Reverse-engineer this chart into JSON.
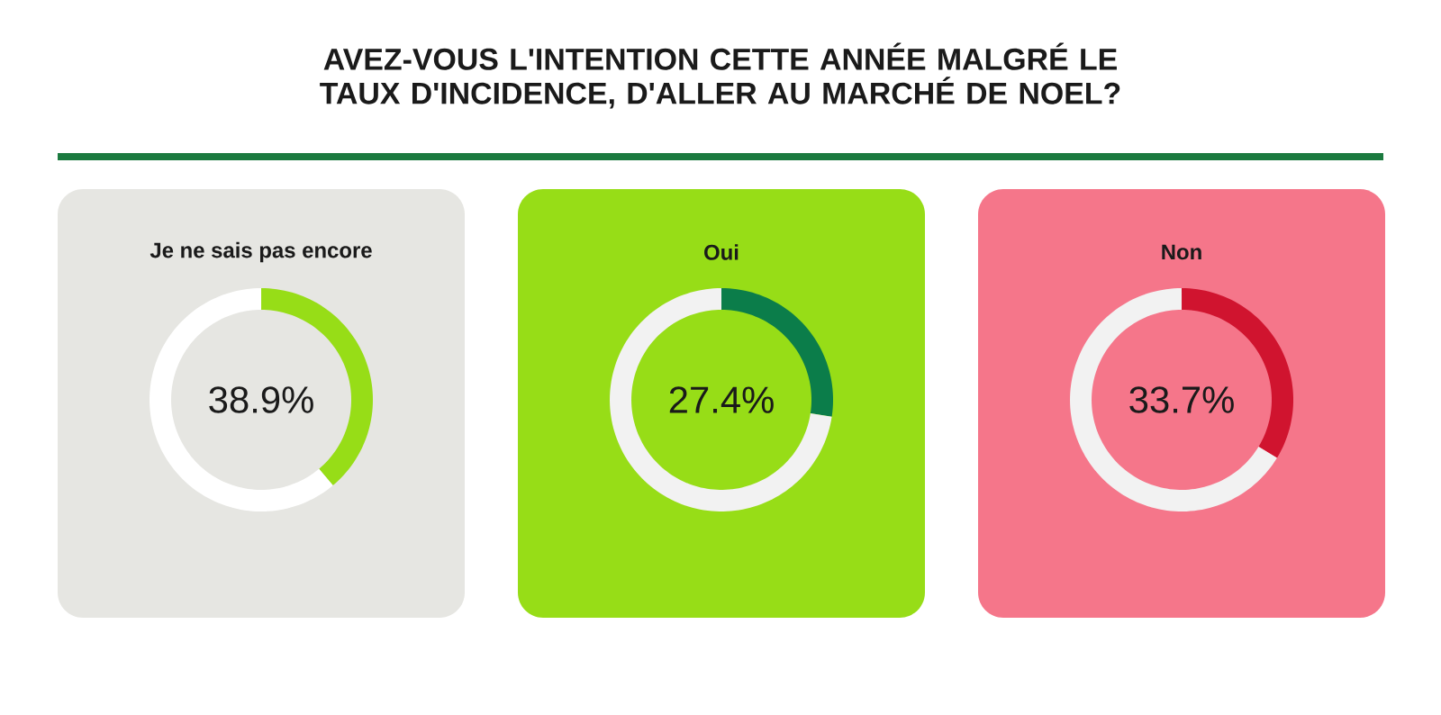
{
  "chart_data": [
    {
      "type": "other",
      "title": "AVEZ-VOUS L'INTENTION CETTE ANNÉE MALGRÉ LE TAUX D'INCIDENCE, D'ALLER AU MARCHÉ DE NOEL?"
    },
    {
      "type": "donut",
      "title": "Je ne sais pas encore",
      "categories": [
        null,
        null
      ],
      "values": [
        38.9,
        61.1
      ],
      "colors": [
        "#97dd17",
        "#ffffff"
      ],
      "value_labels": [
        "38.9%",
        null
      ]
    },
    {
      "type": "donut",
      "title": "Oui",
      "categories": [
        null,
        null
      ],
      "values": [
        27.4,
        72.6
      ],
      "colors": [
        "#0b7d4a",
        "#f2f2f2"
      ],
      "value_labels": [
        "27.4%",
        null
      ]
    },
    {
      "type": "donut",
      "title": "Non",
      "categories": [
        null,
        null
      ],
      "values": [
        33.7,
        66.3
      ],
      "colors": [
        "#d0142f",
        "#f2f2f2"
      ],
      "value_labels": [
        "33.7%",
        null
      ]
    }
  ]
}
